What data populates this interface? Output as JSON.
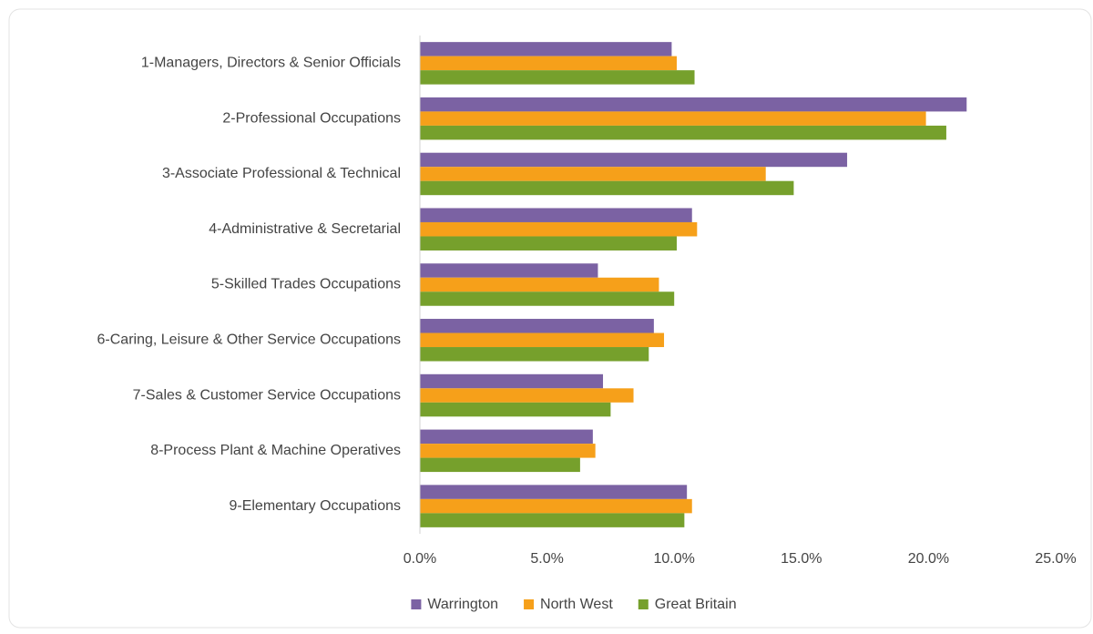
{
  "chart_data": {
    "type": "hbar",
    "categories": [
      "1-Managers, Directors & Senior Officials",
      "2-Professional Occupations",
      "3-Associate Professional & Technical",
      "4-Administrative & Secretarial",
      "5-Skilled Trades Occupations",
      "6-Caring, Leisure & Other Service Occupations",
      "7-Sales & Customer Service Occupations",
      "8-Process Plant & Machine Operatives",
      "9-Elementary Occupations"
    ],
    "series": [
      {
        "name": "Warrington",
        "color": "#7b62a3",
        "values": [
          9.9,
          21.5,
          16.8,
          10.7,
          7.0,
          9.2,
          7.2,
          6.8,
          10.5
        ]
      },
      {
        "name": "North West",
        "color": "#f6a01a",
        "values": [
          10.1,
          19.9,
          13.6,
          10.9,
          9.4,
          9.6,
          8.4,
          6.9,
          10.7
        ]
      },
      {
        "name": "Great Britain",
        "color": "#76a02c",
        "values": [
          10.8,
          20.7,
          14.7,
          10.1,
          10.0,
          9.0,
          7.5,
          6.3,
          10.4
        ]
      }
    ],
    "xlim": [
      0,
      25
    ],
    "xticks": [
      {
        "value": 0,
        "label": "0.0%"
      },
      {
        "value": 5,
        "label": "5.0%"
      },
      {
        "value": 10,
        "label": "10.0%"
      },
      {
        "value": 15,
        "label": "15.0%"
      },
      {
        "value": 20,
        "label": "20.0%"
      },
      {
        "value": 25,
        "label": "25.0%"
      }
    ],
    "grid": false,
    "legend": "bottom"
  }
}
